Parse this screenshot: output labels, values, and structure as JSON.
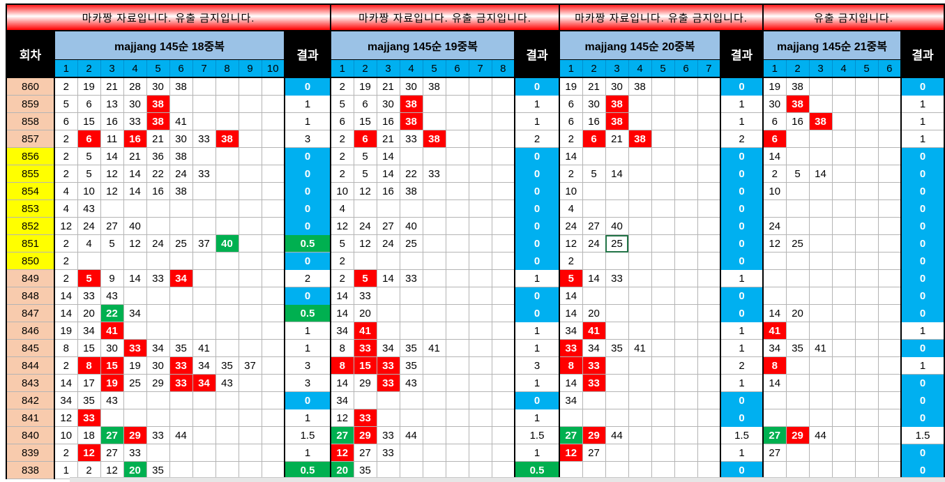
{
  "header": {
    "round_label": "회차"
  },
  "colors": {
    "red": "#FF0000",
    "green": "#00B050",
    "blue": "#00B0F0",
    "header_blue": "#9BC2E6",
    "round_peach": "#F8CBAD",
    "round_yellow": "#FFFF00"
  },
  "rounds": [
    "860",
    "859",
    "858",
    "857",
    "856",
    "855",
    "854",
    "853",
    "852",
    "851",
    "850",
    "849",
    "848",
    "847",
    "846",
    "845",
    "844",
    "843",
    "842",
    "841",
    "840",
    "839",
    "838"
  ],
  "yellow_rounds": [
    "856",
    "855",
    "854",
    "853",
    "852",
    "851",
    "850"
  ],
  "selected_cell": {
    "section": 2,
    "round": "851",
    "column": 3
  },
  "sections": [
    {
      "title": "마카짱 자료입니다. 유출 금지입니다.",
      "header": "majjang 145순 18중복",
      "result_label": "결과",
      "columns": [
        "1",
        "2",
        "3",
        "4",
        "5",
        "6",
        "7",
        "8",
        "9",
        "10"
      ],
      "rows": [
        {
          "cells": [
            "2",
            "19",
            "21",
            "28",
            "30",
            "38"
          ],
          "result": "0"
        },
        {
          "cells": [
            "5",
            "6",
            "13",
            "30",
            {
              "v": "38",
              "hl": "red"
            }
          ],
          "result": "1"
        },
        {
          "cells": [
            "6",
            "15",
            "16",
            "33",
            {
              "v": "38",
              "hl": "red"
            },
            "41"
          ],
          "result": "1"
        },
        {
          "cells": [
            "2",
            {
              "v": "6",
              "hl": "red"
            },
            "11",
            {
              "v": "16",
              "hl": "red"
            },
            "21",
            "30",
            "33",
            {
              "v": "38",
              "hl": "red"
            }
          ],
          "result": "3"
        },
        {
          "cells": [
            "2",
            "5",
            "14",
            "21",
            "36",
            "38"
          ],
          "result": "0"
        },
        {
          "cells": [
            "2",
            "5",
            "12",
            "14",
            "22",
            "24",
            "33"
          ],
          "result": "0"
        },
        {
          "cells": [
            "4",
            "10",
            "12",
            "14",
            "16",
            "38"
          ],
          "result": "0"
        },
        {
          "cells": [
            "4",
            "43"
          ],
          "result": "0"
        },
        {
          "cells": [
            "12",
            "24",
            "27",
            "40"
          ],
          "result": "0"
        },
        {
          "cells": [
            "2",
            "4",
            "5",
            "12",
            "24",
            "25",
            "37",
            {
              "v": "40",
              "hl": "green"
            }
          ],
          "result": "0.5"
        },
        {
          "cells": [
            "2"
          ],
          "result": "0"
        },
        {
          "cells": [
            "2",
            {
              "v": "5",
              "hl": "red"
            },
            "9",
            "14",
            "33",
            {
              "v": "34",
              "hl": "red"
            }
          ],
          "result": "2"
        },
        {
          "cells": [
            "14",
            "33",
            "43"
          ],
          "result": "0"
        },
        {
          "cells": [
            "14",
            "20",
            {
              "v": "22",
              "hl": "green"
            },
            "34"
          ],
          "result": "0.5"
        },
        {
          "cells": [
            "19",
            "34",
            {
              "v": "41",
              "hl": "red"
            }
          ],
          "result": "1"
        },
        {
          "cells": [
            "8",
            "15",
            "30",
            {
              "v": "33",
              "hl": "red"
            },
            "34",
            "35",
            "41"
          ],
          "result": "1"
        },
        {
          "cells": [
            "2",
            {
              "v": "8",
              "hl": "red"
            },
            {
              "v": "15",
              "hl": "red"
            },
            "19",
            "30",
            {
              "v": "33",
              "hl": "red"
            },
            "34",
            "35",
            "37"
          ],
          "result": "3"
        },
        {
          "cells": [
            "14",
            "17",
            {
              "v": "19",
              "hl": "red"
            },
            "25",
            "29",
            {
              "v": "33",
              "hl": "red"
            },
            {
              "v": "34",
              "hl": "red"
            },
            "43"
          ],
          "result": "3"
        },
        {
          "cells": [
            "34",
            "35",
            "43"
          ],
          "result": "0"
        },
        {
          "cells": [
            "12",
            {
              "v": "33",
              "hl": "red"
            }
          ],
          "result": "1"
        },
        {
          "cells": [
            "10",
            "18",
            {
              "v": "27",
              "hl": "green"
            },
            {
              "v": "29",
              "hl": "red"
            },
            "33",
            "44"
          ],
          "result": "1.5"
        },
        {
          "cells": [
            "2",
            {
              "v": "12",
              "hl": "red"
            },
            "27",
            "33"
          ],
          "result": "1"
        },
        {
          "cells": [
            "1",
            "2",
            "12",
            {
              "v": "20",
              "hl": "green"
            },
            "35"
          ],
          "result": "0.5"
        }
      ]
    },
    {
      "title": "마카짱 자료입니다. 유출 금지입니다.",
      "header": "majjang 145순 19중복",
      "result_label": "결과",
      "columns": [
        "1",
        "2",
        "3",
        "4",
        "5",
        "6",
        "7",
        "8"
      ],
      "rows": [
        {
          "cells": [
            "2",
            "19",
            "21",
            "30",
            "38"
          ],
          "result": "0"
        },
        {
          "cells": [
            "5",
            "6",
            "30",
            {
              "v": "38",
              "hl": "red"
            }
          ],
          "result": "1"
        },
        {
          "cells": [
            "6",
            "15",
            "16",
            {
              "v": "38",
              "hl": "red"
            }
          ],
          "result": "1"
        },
        {
          "cells": [
            "2",
            {
              "v": "6",
              "hl": "red"
            },
            "21",
            "33",
            {
              "v": "38",
              "hl": "red"
            }
          ],
          "result": "2"
        },
        {
          "cells": [
            "2",
            "5",
            "14"
          ],
          "result": "0"
        },
        {
          "cells": [
            "2",
            "5",
            "14",
            "22",
            "33"
          ],
          "result": "0"
        },
        {
          "cells": [
            "10",
            "12",
            "16",
            "38"
          ],
          "result": "0"
        },
        {
          "cells": [
            "4"
          ],
          "result": "0"
        },
        {
          "cells": [
            "12",
            "24",
            "27",
            "40"
          ],
          "result": "0"
        },
        {
          "cells": [
            "5",
            "12",
            "24",
            "25"
          ],
          "result": "0"
        },
        {
          "cells": [
            "2"
          ],
          "result": "0"
        },
        {
          "cells": [
            "2",
            {
              "v": "5",
              "hl": "red"
            },
            "14",
            "33"
          ],
          "result": "1"
        },
        {
          "cells": [
            "14",
            "33"
          ],
          "result": "0"
        },
        {
          "cells": [
            "14",
            "20"
          ],
          "result": "0"
        },
        {
          "cells": [
            "34",
            {
              "v": "41",
              "hl": "red"
            }
          ],
          "result": "1"
        },
        {
          "cells": [
            "8",
            {
              "v": "33",
              "hl": "red"
            },
            "34",
            "35",
            "41"
          ],
          "result": "1"
        },
        {
          "cells": [
            {
              "v": "8",
              "hl": "red"
            },
            {
              "v": "15",
              "hl": "red"
            },
            {
              "v": "33",
              "hl": "red"
            },
            "35"
          ],
          "result": "3"
        },
        {
          "cells": [
            "14",
            "29",
            {
              "v": "33",
              "hl": "red"
            },
            "43"
          ],
          "result": "1"
        },
        {
          "cells": [
            "34"
          ],
          "result": "0"
        },
        {
          "cells": [
            "12",
            {
              "v": "33",
              "hl": "red"
            }
          ],
          "result": "1"
        },
        {
          "cells": [
            {
              "v": "27",
              "hl": "green"
            },
            {
              "v": "29",
              "hl": "red"
            },
            "33",
            "44"
          ],
          "result": "1.5"
        },
        {
          "cells": [
            {
              "v": "12",
              "hl": "red"
            },
            "27",
            "33"
          ],
          "result": "1"
        },
        {
          "cells": [
            {
              "v": "20",
              "hl": "green"
            },
            "35"
          ],
          "result": "0.5"
        }
      ]
    },
    {
      "title": "마카짱 자료입니다. 유출 금지입니다.",
      "header": "majjang 145순 20중복",
      "result_label": "결과",
      "columns": [
        "1",
        "2",
        "3",
        "4",
        "5",
        "6",
        "7"
      ],
      "rows": [
        {
          "cells": [
            "19",
            "21",
            "30",
            "38"
          ],
          "result": "0"
        },
        {
          "cells": [
            "6",
            "30",
            {
              "v": "38",
              "hl": "red"
            }
          ],
          "result": "1"
        },
        {
          "cells": [
            "6",
            "16",
            {
              "v": "38",
              "hl": "red"
            }
          ],
          "result": "1"
        },
        {
          "cells": [
            "2",
            {
              "v": "6",
              "hl": "red"
            },
            "21",
            {
              "v": "38",
              "hl": "red"
            }
          ],
          "result": "2"
        },
        {
          "cells": [
            "14"
          ],
          "result": "0"
        },
        {
          "cells": [
            "2",
            "5",
            "14"
          ],
          "result": "0"
        },
        {
          "cells": [
            "10"
          ],
          "result": "0"
        },
        {
          "cells": [
            "4"
          ],
          "result": "0"
        },
        {
          "cells": [
            "24",
            "27",
            "40"
          ],
          "result": "0"
        },
        {
          "cells": [
            "12",
            "24",
            "25"
          ],
          "result": "0"
        },
        {
          "cells": [
            "2"
          ],
          "result": "0"
        },
        {
          "cells": [
            {
              "v": "5",
              "hl": "red"
            },
            "14",
            "33"
          ],
          "result": "1"
        },
        {
          "cells": [
            "14"
          ],
          "result": "0"
        },
        {
          "cells": [
            "14",
            "20"
          ],
          "result": "0"
        },
        {
          "cells": [
            "34",
            {
              "v": "41",
              "hl": "red"
            }
          ],
          "result": "1"
        },
        {
          "cells": [
            {
              "v": "33",
              "hl": "red"
            },
            "34",
            "35",
            "41"
          ],
          "result": "1"
        },
        {
          "cells": [
            {
              "v": "8",
              "hl": "red"
            },
            {
              "v": "33",
              "hl": "red"
            }
          ],
          "result": "2"
        },
        {
          "cells": [
            "14",
            {
              "v": "33",
              "hl": "red"
            }
          ],
          "result": "1"
        },
        {
          "cells": [
            "34"
          ],
          "result": "0"
        },
        {
          "cells": [],
          "result": "0"
        },
        {
          "cells": [
            {
              "v": "27",
              "hl": "green"
            },
            {
              "v": "29",
              "hl": "red"
            },
            "44"
          ],
          "result": "1.5"
        },
        {
          "cells": [
            {
              "v": "12",
              "hl": "red"
            },
            "27"
          ],
          "result": "1"
        },
        {
          "cells": [],
          "result": "0"
        }
      ]
    },
    {
      "title": "유출 금지입니다.",
      "header": "majjang 145순 21중복",
      "result_label": "결과",
      "columns": [
        "1",
        "2",
        "3",
        "4",
        "5",
        "6"
      ],
      "rows": [
        {
          "cells": [
            "19",
            "38"
          ],
          "result": "0"
        },
        {
          "cells": [
            "30",
            {
              "v": "38",
              "hl": "red"
            }
          ],
          "result": "1"
        },
        {
          "cells": [
            "6",
            "16",
            {
              "v": "38",
              "hl": "red"
            }
          ],
          "result": "1"
        },
        {
          "cells": [
            {
              "v": "6",
              "hl": "red"
            }
          ],
          "result": "1"
        },
        {
          "cells": [
            "14"
          ],
          "result": "0"
        },
        {
          "cells": [
            "2",
            "5",
            "14"
          ],
          "result": "0"
        },
        {
          "cells": [
            "10"
          ],
          "result": "0"
        },
        {
          "cells": [],
          "result": "0"
        },
        {
          "cells": [
            "24"
          ],
          "result": "0"
        },
        {
          "cells": [
            "12",
            "25"
          ],
          "result": "0"
        },
        {
          "cells": [],
          "result": "0"
        },
        {
          "cells": [],
          "result": "0"
        },
        {
          "cells": [],
          "result": "0"
        },
        {
          "cells": [
            "14",
            "20"
          ],
          "result": "0"
        },
        {
          "cells": [
            {
              "v": "41",
              "hl": "red"
            }
          ],
          "result": "1"
        },
        {
          "cells": [
            "34",
            "35",
            "41"
          ],
          "result": "0"
        },
        {
          "cells": [
            {
              "v": "8",
              "hl": "red"
            }
          ],
          "result": "1"
        },
        {
          "cells": [
            "14"
          ],
          "result": "0"
        },
        {
          "cells": [],
          "result": "0"
        },
        {
          "cells": [],
          "result": "0"
        },
        {
          "cells": [
            {
              "v": "27",
              "hl": "green"
            },
            {
              "v": "29",
              "hl": "red"
            },
            "44"
          ],
          "result": "1.5"
        },
        {
          "cells": [
            "27"
          ],
          "result": "0"
        },
        {
          "cells": [],
          "result": "0"
        }
      ]
    }
  ]
}
